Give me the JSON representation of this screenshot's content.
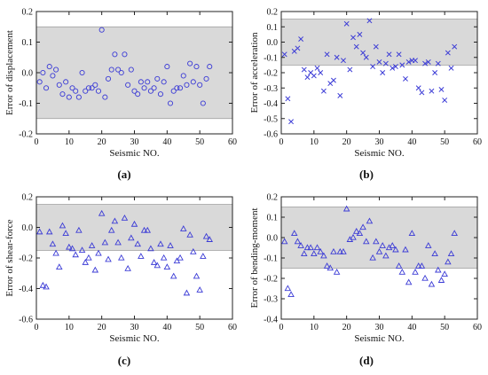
{
  "chart_data": [
    {
      "panel": "(a)",
      "type": "scatter",
      "marker": "circle",
      "color": "#3b3bd6",
      "band_color": "#d9d9d9",
      "band": [
        -0.15,
        0.15
      ],
      "xlabel": "Seismic NO.",
      "ylabel": "Error of displacement",
      "xlim": [
        0,
        60
      ],
      "ylim": [
        -0.2,
        0.2
      ],
      "xticks": [
        0,
        10,
        20,
        30,
        40,
        50,
        60
      ],
      "yticks": [
        -0.2,
        -0.1,
        0.0,
        0.1,
        0.2
      ],
      "ytick_labels": [
        "-0.2",
        "-0.1",
        "0.0",
        "0.1",
        "0.2"
      ],
      "x": [
        1,
        2,
        3,
        4,
        5,
        6,
        7,
        8,
        9,
        10,
        11,
        12,
        13,
        14,
        15,
        16,
        17,
        18,
        19,
        20,
        21,
        22,
        23,
        24,
        25,
        26,
        27,
        28,
        29,
        30,
        31,
        32,
        33,
        34,
        35,
        36,
        37,
        38,
        39,
        40,
        41,
        42,
        43,
        44,
        45,
        46,
        47,
        48,
        49,
        50,
        51,
        52,
        53
      ],
      "y": [
        -0.03,
        0.0,
        -0.05,
        0.02,
        -0.01,
        0.01,
        -0.04,
        -0.07,
        -0.03,
        -0.08,
        -0.05,
        -0.06,
        -0.08,
        0.0,
        -0.06,
        -0.05,
        -0.05,
        -0.04,
        -0.06,
        0.14,
        -0.08,
        -0.02,
        0.01,
        0.06,
        0.01,
        0.0,
        0.06,
        -0.04,
        0.01,
        -0.06,
        -0.07,
        -0.03,
        -0.05,
        -0.03,
        -0.06,
        -0.05,
        -0.02,
        -0.07,
        -0.03,
        0.02,
        -0.1,
        -0.06,
        -0.05,
        -0.05,
        -0.01,
        -0.04,
        0.03,
        -0.03,
        0.02,
        -0.04,
        -0.1,
        -0.02,
        0.02
      ]
    },
    {
      "panel": "(b)",
      "type": "scatter",
      "marker": "x",
      "color": "#3b3bd6",
      "band_color": "#d9d9d9",
      "band": [
        -0.15,
        0.15
      ],
      "xlabel": "Seismic NO.",
      "ylabel": "Error of acceleration",
      "xlim": [
        0,
        60
      ],
      "ylim": [
        -0.6,
        0.2
      ],
      "xticks": [
        0,
        10,
        20,
        30,
        40,
        50,
        60
      ],
      "yticks": [
        -0.6,
        -0.5,
        -0.4,
        -0.3,
        -0.2,
        -0.1,
        0.0,
        0.1,
        0.2
      ],
      "ytick_labels": [
        "-0.6",
        "-0.5",
        "-0.4",
        "-0.3",
        "-0.2",
        "-0.1",
        "0.0",
        "0.1",
        "0.2"
      ],
      "x": [
        1,
        2,
        3,
        4,
        5,
        6,
        7,
        8,
        9,
        10,
        11,
        12,
        13,
        14,
        15,
        16,
        17,
        18,
        19,
        20,
        21,
        22,
        23,
        24,
        25,
        26,
        27,
        28,
        29,
        30,
        31,
        32,
        33,
        34,
        35,
        36,
        37,
        38,
        39,
        40,
        41,
        42,
        43,
        44,
        45,
        46,
        47,
        48,
        49,
        50,
        51,
        52,
        53
      ],
      "y": [
        -0.08,
        -0.37,
        -0.52,
        -0.06,
        -0.04,
        0.02,
        -0.18,
        -0.23,
        -0.2,
        -0.22,
        -0.17,
        -0.2,
        -0.32,
        -0.08,
        -0.27,
        -0.25,
        -0.1,
        -0.35,
        -0.12,
        0.12,
        -0.18,
        0.03,
        -0.03,
        0.05,
        -0.07,
        -0.1,
        0.14,
        -0.16,
        -0.03,
        -0.13,
        -0.2,
        -0.14,
        -0.08,
        -0.17,
        -0.16,
        -0.08,
        -0.15,
        -0.24,
        -0.13,
        -0.12,
        -0.12,
        -0.3,
        -0.33,
        -0.14,
        -0.13,
        -0.32,
        -0.2,
        -0.14,
        -0.31,
        -0.38,
        -0.07,
        -0.17,
        -0.03
      ]
    },
    {
      "panel": "(c)",
      "type": "scatter",
      "marker": "triangle",
      "color": "#3b3bd6",
      "band_color": "#d9d9d9",
      "band": [
        -0.15,
        0.15
      ],
      "xlabel": "Seismic NO.",
      "ylabel": "Error of shear-force",
      "xlim": [
        0,
        60
      ],
      "ylim": [
        -0.6,
        0.2
      ],
      "xticks": [
        0,
        10,
        20,
        30,
        40,
        50,
        60
      ],
      "yticks": [
        -0.6,
        -0.4,
        -0.2,
        0.0,
        0.2
      ],
      "ytick_labels": [
        "-0.6",
        "-0.4",
        "-0.2",
        "0.0",
        "0.2"
      ],
      "x": [
        1,
        2,
        3,
        4,
        5,
        6,
        7,
        8,
        9,
        10,
        11,
        12,
        13,
        14,
        15,
        16,
        17,
        18,
        19,
        20,
        21,
        22,
        23,
        24,
        25,
        26,
        27,
        28,
        29,
        30,
        31,
        32,
        33,
        34,
        35,
        36,
        37,
        38,
        39,
        40,
        41,
        42,
        43,
        44,
        45,
        46,
        47,
        48,
        49,
        50,
        51,
        52,
        53
      ],
      "y": [
        -0.03,
        -0.38,
        -0.39,
        -0.03,
        -0.11,
        -0.17,
        -0.26,
        0.01,
        -0.04,
        -0.13,
        -0.14,
        -0.18,
        -0.02,
        -0.15,
        -0.23,
        -0.2,
        -0.12,
        -0.28,
        -0.17,
        0.09,
        -0.1,
        -0.21,
        -0.02,
        0.04,
        -0.1,
        -0.2,
        0.06,
        -0.27,
        -0.07,
        0.02,
        -0.11,
        -0.19,
        -0.02,
        -0.02,
        -0.14,
        -0.23,
        -0.25,
        -0.11,
        -0.2,
        -0.26,
        -0.12,
        -0.32,
        -0.22,
        -0.2,
        -0.01,
        -0.43,
        -0.05,
        -0.16,
        -0.32,
        -0.41,
        -0.19,
        -0.06,
        -0.08
      ]
    },
    {
      "panel": "(d)",
      "type": "scatter",
      "marker": "triangle",
      "color": "#3b3bd6",
      "band_color": "#d9d9d9",
      "band": [
        -0.15,
        0.15
      ],
      "xlabel": "Seismic NO.",
      "ylabel": "Error of bending-moment",
      "xlim": [
        0,
        60
      ],
      "ylim": [
        -0.4,
        0.2
      ],
      "xticks": [
        0,
        10,
        20,
        30,
        40,
        50,
        60
      ],
      "yticks": [
        -0.4,
        -0.3,
        -0.2,
        -0.1,
        0.0,
        0.1,
        0.2
      ],
      "ytick_labels": [
        "-0.4",
        "-0.3",
        "-0.2",
        "-0.1",
        "0.0",
        "0.1",
        "0.2"
      ],
      "x": [
        1,
        2,
        3,
        4,
        5,
        6,
        7,
        8,
        9,
        10,
        11,
        12,
        13,
        14,
        15,
        16,
        17,
        18,
        19,
        20,
        21,
        22,
        23,
        24,
        25,
        26,
        27,
        28,
        29,
        30,
        31,
        32,
        33,
        34,
        35,
        36,
        37,
        38,
        39,
        40,
        41,
        42,
        43,
        44,
        45,
        46,
        47,
        48,
        49,
        50,
        51,
        52,
        53
      ],
      "y": [
        -0.02,
        -0.25,
        -0.28,
        0.02,
        -0.02,
        -0.04,
        -0.08,
        -0.05,
        -0.05,
        -0.08,
        -0.05,
        -0.07,
        -0.09,
        -0.14,
        -0.15,
        -0.07,
        -0.17,
        -0.07,
        -0.07,
        0.14,
        -0.01,
        0.0,
        0.03,
        0.02,
        0.05,
        -0.02,
        0.08,
        -0.1,
        -0.02,
        -0.07,
        -0.04,
        -0.09,
        -0.05,
        -0.04,
        -0.06,
        -0.14,
        -0.17,
        -0.06,
        -0.22,
        0.02,
        -0.17,
        -0.14,
        -0.14,
        -0.2,
        -0.04,
        -0.23,
        -0.08,
        -0.16,
        -0.21,
        -0.18,
        -0.12,
        -0.08,
        0.02
      ]
    }
  ]
}
